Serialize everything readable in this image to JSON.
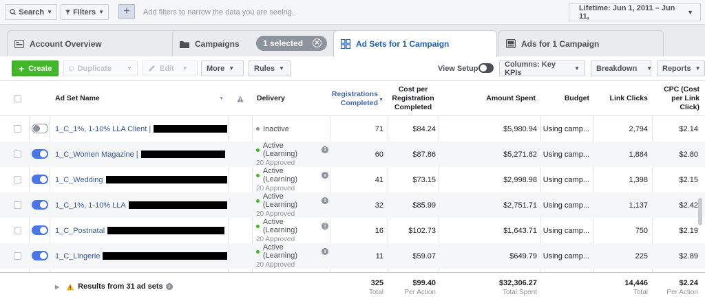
{
  "filterbar": {
    "search_label": "Search",
    "filters_label": "Filters",
    "add_label": "+",
    "hint": "Add filters to narrow the data you are seeing.",
    "lifetime_label": "Lifetime: Jun 1, 2011 – Jun 11,"
  },
  "tabs": {
    "account_overview": "Account Overview",
    "campaigns": "Campaigns",
    "selected": "1 selected",
    "ad_sets": "Ad Sets for 1 Campaign",
    "ads": "Ads for 1 Campaign"
  },
  "toolbar": {
    "create": "Create",
    "duplicate": "Duplicate",
    "edit": "Edit",
    "more": "More",
    "rules": "Rules",
    "view_setup": "View Setup",
    "columns": "Columns: Key KPIs",
    "breakdown": "Breakdown",
    "reports": "Reports"
  },
  "table": {
    "headers": {
      "name": "Ad Set Name",
      "delivery": "Delivery",
      "registrations": "Registrations Completed",
      "cost_per": "Cost per Registration Completed",
      "amount": "Amount Spent",
      "budget": "Budget",
      "link_clicks": "Link Clicks",
      "cpc": "CPC (Cost per Link Click)"
    },
    "rows": [
      {
        "name": "1_C_1%, 1-10% LLA Client |",
        "active": false,
        "status": "Inactive",
        "sub": "",
        "registrations": "71",
        "cost": "$84.24",
        "amount": "$5,980.94",
        "budget": "Using camp...",
        "clicks": "2,794",
        "cpc": "$2.14"
      },
      {
        "name": "1_C_Women Magazine |",
        "active": true,
        "status": "Active (Learning)",
        "sub": "20 Approved",
        "registrations": "60",
        "cost": "$87.86",
        "amount": "$5,271.82",
        "budget": "Using camp...",
        "clicks": "1,884",
        "cpc": "$2.80"
      },
      {
        "name": "1_C_Wedding",
        "active": true,
        "status": "Active (Learning)",
        "sub": "20 Approved",
        "registrations": "41",
        "cost": "$73.15",
        "amount": "$2,998.98",
        "budget": "Using camp...",
        "clicks": "1,398",
        "cpc": "$2.15"
      },
      {
        "name": "1_C_1%, 1-10% LLA",
        "active": true,
        "status": "Active (Learning)",
        "sub": "20 Approved",
        "registrations": "32",
        "cost": "$85.99",
        "amount": "$2,751.71",
        "budget": "Using camp...",
        "clicks": "1,137",
        "cpc": "$2.42"
      },
      {
        "name": "1_C_Postnatal",
        "active": true,
        "status": "Active (Learning)",
        "sub": "20 Approved",
        "registrations": "16",
        "cost": "$102.73",
        "amount": "$1,643.71",
        "budget": "Using camp...",
        "clicks": "750",
        "cpc": "$2.19"
      },
      {
        "name": "1_C_Lingerie",
        "active": true,
        "status": "Active (Learning)",
        "sub": "20 Approved",
        "registrations": "11",
        "cost": "$59.07",
        "amount": "$649.79",
        "budget": "Using camp...",
        "clicks": "225",
        "cpc": "$2.89"
      }
    ],
    "footer": {
      "results": "Results from 31 ad sets",
      "registrations": "325",
      "registrations_label": "Total",
      "cost": "$99.40",
      "cost_label": "Per Action",
      "amount": "$32,306.27",
      "amount_label": "Total Spent",
      "clicks": "14,446",
      "clicks_label": "Total",
      "cpc": "$2.24",
      "cpc_label": "Per Action"
    }
  },
  "colors": {
    "active_dot": "#42b72a",
    "inactive_dot": "#8d949e",
    "link": "#365899",
    "create_green": "#42b72a"
  }
}
